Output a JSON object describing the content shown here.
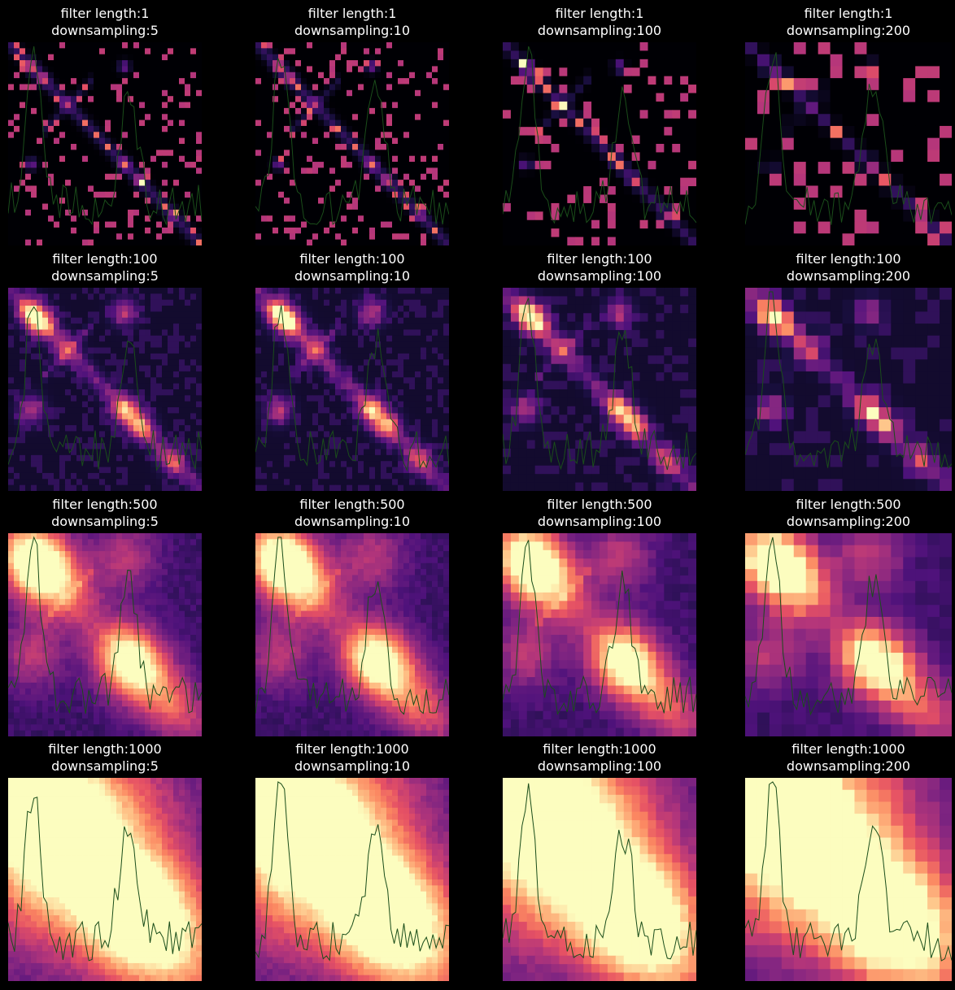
{
  "chart_data": {
    "type": "heatmap",
    "colormap": "magma",
    "overlay_color": "#1a4d1a",
    "rows": 4,
    "cols": 4,
    "panels": [
      {
        "title_line1": "filter length:1",
        "title_line2": "downsampling:5",
        "filter_length": 1,
        "downsampling": 5
      },
      {
        "title_line1": "filter length:1",
        "title_line2": "downsampling:10",
        "filter_length": 1,
        "downsampling": 10
      },
      {
        "title_line1": "filter length:1",
        "title_line2": "downsampling:100",
        "filter_length": 1,
        "downsampling": 100
      },
      {
        "title_line1": "filter length:1",
        "title_line2": "downsampling:200",
        "filter_length": 1,
        "downsampling": 200
      },
      {
        "title_line1": "filter length:100",
        "title_line2": "downsampling:5",
        "filter_length": 100,
        "downsampling": 5
      },
      {
        "title_line1": "filter length:100",
        "title_line2": "downsampling:10",
        "filter_length": 100,
        "downsampling": 10
      },
      {
        "title_line1": "filter length:100",
        "title_line2": "downsampling:100",
        "filter_length": 100,
        "downsampling": 100
      },
      {
        "title_line1": "filter length:100",
        "title_line2": "downsampling:200",
        "filter_length": 100,
        "downsampling": 200
      },
      {
        "title_line1": "filter length:500",
        "title_line2": "downsampling:5",
        "filter_length": 500,
        "downsampling": 5
      },
      {
        "title_line1": "filter length:500",
        "title_line2": "downsampling:10",
        "filter_length": 500,
        "downsampling": 10
      },
      {
        "title_line1": "filter length:500",
        "title_line2": "downsampling:100",
        "filter_length": 500,
        "downsampling": 100
      },
      {
        "title_line1": "filter length:500",
        "title_line2": "downsampling:200",
        "filter_length": 500,
        "downsampling": 200
      },
      {
        "title_line1": "filter length:1000",
        "title_line2": "downsampling:5",
        "filter_length": 1000,
        "downsampling": 5
      },
      {
        "title_line1": "filter length:1000",
        "title_line2": "downsampling:10",
        "filter_length": 1000,
        "downsampling": 10
      },
      {
        "title_line1": "filter length:1000",
        "title_line2": "downsampling:100",
        "filter_length": 1000,
        "downsampling": 100
      },
      {
        "title_line1": "filter length:1000",
        "title_line2": "downsampling:200",
        "filter_length": 1000,
        "downsampling": 200
      }
    ]
  }
}
